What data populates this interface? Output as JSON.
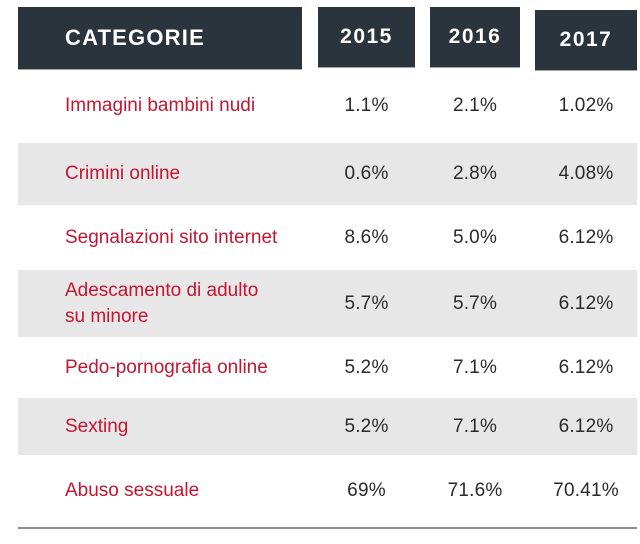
{
  "colors": {
    "header_bg": "#2b333d",
    "header_text": "#ffffff",
    "row_alt_bg": "#e8e7e7",
    "category_text": "#c31632",
    "value_text": "#2b2a2a",
    "bottom_rule": "#8e8e8e"
  },
  "table": {
    "header": {
      "category": "CATEGORIE",
      "years": [
        "2015",
        "2016",
        "2017"
      ]
    },
    "rows": [
      {
        "label": "Immagini bambini nudi",
        "values": [
          "1.1%",
          "2.1%",
          "1.02%"
        ]
      },
      {
        "label": "Crimini online",
        "values": [
          "0.6%",
          "2.8%",
          "4.08%"
        ]
      },
      {
        "label": "Segnalazioni sito internet",
        "values": [
          "8.6%",
          "5.0%",
          "6.12%"
        ]
      },
      {
        "label": "Adescamento di adulto\nsu minore",
        "values": [
          "5.7%",
          "5.7%",
          "6.12%"
        ]
      },
      {
        "label": "Pedo-pornografia online",
        "values": [
          "5.2%",
          "7.1%",
          "6.12%"
        ]
      },
      {
        "label": "Sexting",
        "values": [
          "5.2%",
          "7.1%",
          "6.12%"
        ]
      },
      {
        "label": "Abuso sessuale",
        "values": [
          "69%",
          "71.6%",
          "70.41%"
        ]
      }
    ]
  },
  "chart_data": {
    "type": "table",
    "title": "",
    "columns": [
      "CATEGORIE",
      "2015",
      "2016",
      "2017"
    ],
    "categories": [
      "Immagini bambini nudi",
      "Crimini online",
      "Segnalazioni sito internet",
      "Adescamento di adulto su minore",
      "Pedo-pornografia online",
      "Sexting",
      "Abuso sessuale"
    ],
    "series": [
      {
        "name": "2015",
        "values": [
          1.1,
          0.6,
          8.6,
          5.7,
          5.2,
          5.2,
          69
        ]
      },
      {
        "name": "2016",
        "values": [
          2.1,
          2.8,
          5.0,
          5.7,
          7.1,
          7.1,
          71.6
        ]
      },
      {
        "name": "2017",
        "values": [
          1.02,
          4.08,
          6.12,
          6.12,
          6.12,
          6.12,
          70.41
        ]
      }
    ],
    "unit": "%"
  }
}
